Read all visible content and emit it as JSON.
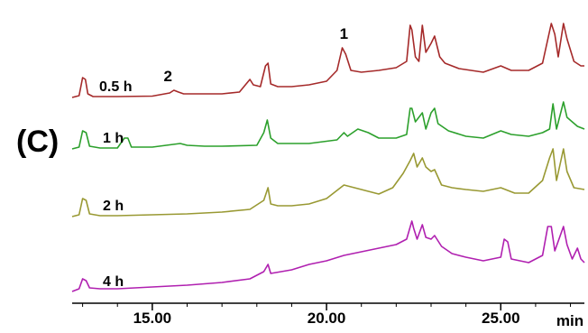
{
  "panel_label": "(C)",
  "chart_data": {
    "type": "line",
    "title": "",
    "xlabel": "min",
    "ylabel": "",
    "xlim": [
      12.7,
      27.4
    ],
    "x_ticks": [
      15.0,
      20.0,
      25.0
    ],
    "x_tick_labels": [
      "15.00",
      "20.00",
      "25.00"
    ],
    "grid": false,
    "legend": "none",
    "annotations": [
      {
        "text": "1",
        "x": 20.5,
        "series": "0.5 h"
      },
      {
        "text": "2",
        "x": 15.5,
        "series": "0.5 h"
      }
    ],
    "series": [
      {
        "name": "0.5 h",
        "color": "#a52a2a",
        "baseline": 0,
        "points": [
          [
            12.7,
            0
          ],
          [
            12.9,
            2
          ],
          [
            13.0,
            22
          ],
          [
            13.08,
            20
          ],
          [
            13.15,
            4
          ],
          [
            13.3,
            1
          ],
          [
            14.0,
            1
          ],
          [
            15.0,
            1.5
          ],
          [
            15.5,
            5
          ],
          [
            15.62,
            8
          ],
          [
            15.75,
            6
          ],
          [
            15.9,
            4
          ],
          [
            16.5,
            4
          ],
          [
            17.0,
            4
          ],
          [
            17.5,
            6
          ],
          [
            17.8,
            20
          ],
          [
            17.9,
            14
          ],
          [
            18.1,
            12
          ],
          [
            18.25,
            35
          ],
          [
            18.32,
            38
          ],
          [
            18.4,
            15
          ],
          [
            18.6,
            12
          ],
          [
            19.0,
            12
          ],
          [
            19.5,
            14
          ],
          [
            20.0,
            18
          ],
          [
            20.3,
            30
          ],
          [
            20.45,
            55
          ],
          [
            20.55,
            48
          ],
          [
            20.7,
            30
          ],
          [
            21.0,
            28
          ],
          [
            21.5,
            30
          ],
          [
            22.0,
            33
          ],
          [
            22.3,
            40
          ],
          [
            22.4,
            80
          ],
          [
            22.45,
            75
          ],
          [
            22.55,
            45
          ],
          [
            22.65,
            40
          ],
          [
            22.75,
            80
          ],
          [
            22.85,
            50
          ],
          [
            23.0,
            60
          ],
          [
            23.1,
            68
          ],
          [
            23.25,
            45
          ],
          [
            23.4,
            38
          ],
          [
            23.8,
            32
          ],
          [
            24.5,
            28
          ],
          [
            25.0,
            35
          ],
          [
            25.3,
            30
          ],
          [
            25.8,
            30
          ],
          [
            26.2,
            38
          ],
          [
            26.45,
            82
          ],
          [
            26.55,
            70
          ],
          [
            26.65,
            45
          ],
          [
            26.8,
            82
          ],
          [
            26.9,
            65
          ],
          [
            27.1,
            40
          ],
          [
            27.3,
            35
          ],
          [
            27.4,
            35
          ]
        ]
      },
      {
        "name": "1 h",
        "color": "#2ca02c",
        "baseline": 0,
        "points": [
          [
            12.7,
            0
          ],
          [
            12.9,
            2
          ],
          [
            13.0,
            20
          ],
          [
            13.1,
            18
          ],
          [
            13.2,
            3
          ],
          [
            13.5,
            1
          ],
          [
            14.0,
            1
          ],
          [
            14.2,
            12
          ],
          [
            14.3,
            12
          ],
          [
            14.4,
            2
          ],
          [
            15.0,
            2
          ],
          [
            15.8,
            6
          ],
          [
            16.0,
            4
          ],
          [
            16.5,
            3
          ],
          [
            17.0,
            3
          ],
          [
            18.0,
            4
          ],
          [
            18.2,
            18
          ],
          [
            18.3,
            32
          ],
          [
            18.4,
            12
          ],
          [
            18.6,
            6
          ],
          [
            19.5,
            6
          ],
          [
            20.3,
            10
          ],
          [
            20.5,
            18
          ],
          [
            20.6,
            14
          ],
          [
            20.9,
            22
          ],
          [
            21.2,
            18
          ],
          [
            21.5,
            12
          ],
          [
            22.0,
            12
          ],
          [
            22.3,
            16
          ],
          [
            22.4,
            45
          ],
          [
            22.45,
            45
          ],
          [
            22.55,
            30
          ],
          [
            22.75,
            40
          ],
          [
            22.85,
            22
          ],
          [
            23.0,
            40
          ],
          [
            23.1,
            45
          ],
          [
            23.2,
            28
          ],
          [
            23.5,
            20
          ],
          [
            24.0,
            14
          ],
          [
            24.5,
            12
          ],
          [
            25.0,
            20
          ],
          [
            25.3,
            16
          ],
          [
            25.8,
            14
          ],
          [
            26.2,
            18
          ],
          [
            26.4,
            22
          ],
          [
            26.5,
            50
          ],
          [
            26.6,
            22
          ],
          [
            26.8,
            52
          ],
          [
            26.9,
            35
          ],
          [
            27.2,
            25
          ],
          [
            27.4,
            22
          ]
        ]
      },
      {
        "name": "2 h",
        "color": "#999933",
        "baseline": 0,
        "points": [
          [
            12.7,
            0
          ],
          [
            12.9,
            2
          ],
          [
            13.0,
            20
          ],
          [
            13.1,
            18
          ],
          [
            13.2,
            3
          ],
          [
            13.5,
            1
          ],
          [
            14.0,
            1
          ],
          [
            15.0,
            2
          ],
          [
            16.0,
            3
          ],
          [
            17.0,
            5
          ],
          [
            17.8,
            8
          ],
          [
            18.2,
            18
          ],
          [
            18.32,
            32
          ],
          [
            18.4,
            14
          ],
          [
            18.6,
            12
          ],
          [
            19.0,
            12
          ],
          [
            19.5,
            14
          ],
          [
            20.0,
            20
          ],
          [
            20.5,
            35
          ],
          [
            20.8,
            32
          ],
          [
            21.2,
            28
          ],
          [
            21.5,
            25
          ],
          [
            21.9,
            32
          ],
          [
            22.2,
            48
          ],
          [
            22.4,
            62
          ],
          [
            22.5,
            70
          ],
          [
            22.6,
            55
          ],
          [
            22.75,
            65
          ],
          [
            22.85,
            55
          ],
          [
            23.0,
            50
          ],
          [
            23.1,
            52
          ],
          [
            23.3,
            35
          ],
          [
            23.6,
            32
          ],
          [
            24.0,
            30
          ],
          [
            24.5,
            28
          ],
          [
            25.0,
            32
          ],
          [
            25.4,
            26
          ],
          [
            25.8,
            26
          ],
          [
            26.2,
            40
          ],
          [
            26.4,
            65
          ],
          [
            26.5,
            75
          ],
          [
            26.6,
            40
          ],
          [
            26.8,
            75
          ],
          [
            26.9,
            50
          ],
          [
            27.1,
            32
          ],
          [
            27.4,
            30
          ]
        ]
      },
      {
        "name": "4 h",
        "color": "#b020b0",
        "baseline": 0,
        "points": [
          [
            12.7,
            0
          ],
          [
            12.9,
            3
          ],
          [
            13.0,
            14
          ],
          [
            13.1,
            12
          ],
          [
            13.2,
            4
          ],
          [
            13.5,
            3
          ],
          [
            14.0,
            3
          ],
          [
            15.0,
            5
          ],
          [
            16.0,
            7
          ],
          [
            17.0,
            10
          ],
          [
            17.8,
            14
          ],
          [
            18.2,
            22
          ],
          [
            18.32,
            30
          ],
          [
            18.4,
            20
          ],
          [
            19.0,
            24
          ],
          [
            19.5,
            30
          ],
          [
            20.0,
            34
          ],
          [
            20.5,
            40
          ],
          [
            21.0,
            44
          ],
          [
            21.5,
            48
          ],
          [
            22.0,
            52
          ],
          [
            22.3,
            58
          ],
          [
            22.45,
            78
          ],
          [
            22.5,
            70
          ],
          [
            22.6,
            58
          ],
          [
            22.75,
            74
          ],
          [
            22.85,
            60
          ],
          [
            23.0,
            58
          ],
          [
            23.1,
            62
          ],
          [
            23.3,
            50
          ],
          [
            23.6,
            42
          ],
          [
            24.0,
            38
          ],
          [
            24.5,
            34
          ],
          [
            25.0,
            38
          ],
          [
            25.1,
            58
          ],
          [
            25.2,
            55
          ],
          [
            25.3,
            36
          ],
          [
            25.8,
            32
          ],
          [
            26.2,
            40
          ],
          [
            26.35,
            72
          ],
          [
            26.45,
            72
          ],
          [
            26.55,
            45
          ],
          [
            26.8,
            72
          ],
          [
            26.9,
            52
          ],
          [
            27.05,
            36
          ],
          [
            27.2,
            48
          ],
          [
            27.3,
            36
          ],
          [
            27.4,
            32
          ]
        ]
      }
    ]
  }
}
